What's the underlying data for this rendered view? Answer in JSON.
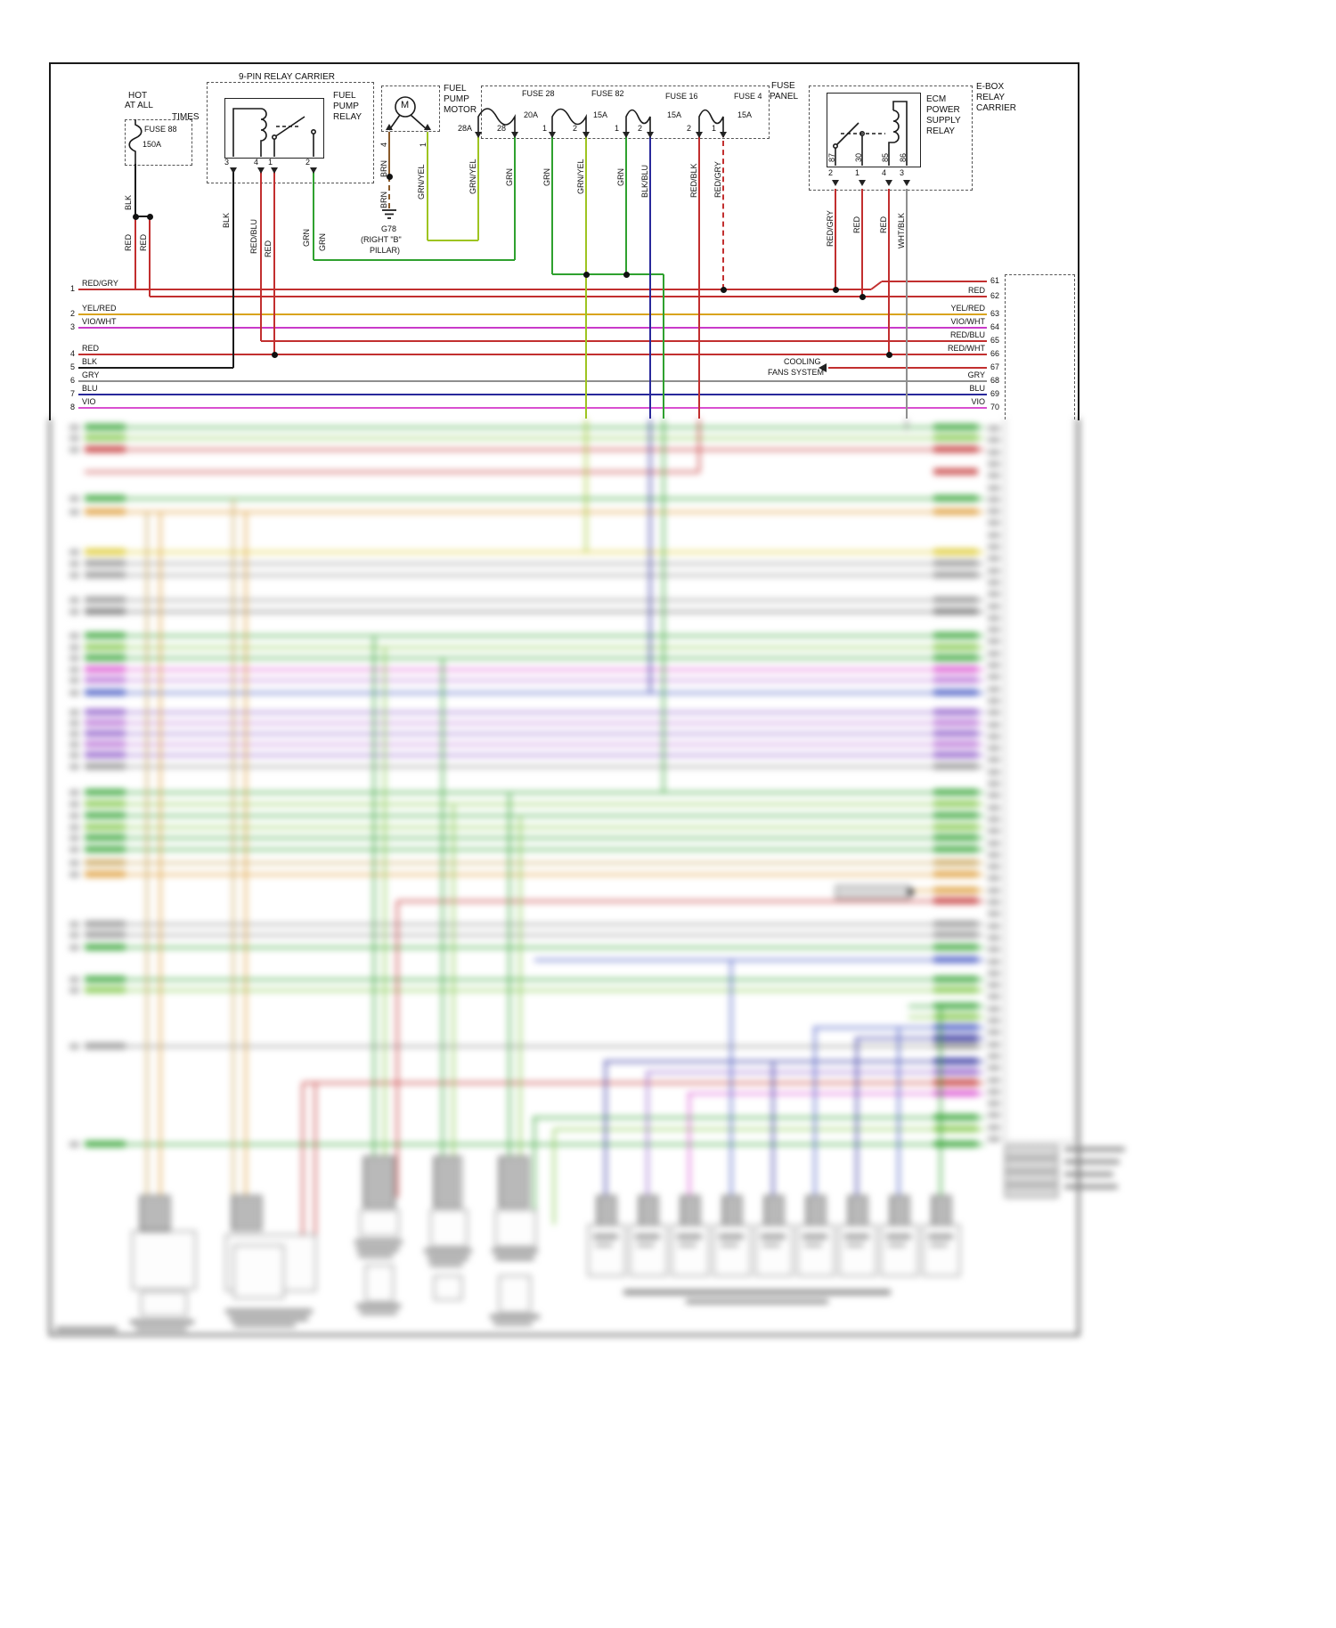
{
  "power_source": {
    "hot_line1": "HOT",
    "hot_line2": "AT ALL",
    "hot_line3": "TIMES",
    "fuse_name": "FUSE 88",
    "fuse_rating": "150A",
    "wire_blk": "BLK",
    "wire_red_left": "RED",
    "wire_red_right": "RED"
  },
  "relay_carrier": {
    "title": "9-PIN RELAY CARRIER",
    "relay_line1": "FUEL",
    "relay_line2": "PUMP",
    "relay_line3": "RELAY",
    "pins": [
      "3",
      "4",
      "1",
      "2"
    ],
    "wire_labels": [
      "BLK",
      "RED/BLU",
      "RED",
      "GRN",
      "GRN"
    ]
  },
  "fuel_pump_motor": {
    "label_line1": "FUEL",
    "label_line2": "PUMP",
    "label_line3": "MOTOR",
    "motor_symbol": "M",
    "pin4": "4",
    "pin4_wire": "BRN",
    "pin1": "1",
    "pin1_wire": "GRN/YEL",
    "ground_wire": "BRN",
    "ground_id": "G78",
    "ground_loc_line1": "(RIGHT \"B\"",
    "ground_loc_line2": "PILLAR)"
  },
  "fuse_panel": {
    "title_line1": "FUSE",
    "title_line2": "PANEL",
    "fuses": [
      {
        "name": "FUSE 28",
        "rating": "20A",
        "pin_left": "28A",
        "pin_right": "28",
        "wire_left": "GRN/YEL",
        "wire_right": "GRN"
      },
      {
        "name": "FUSE 82",
        "rating": "15A",
        "pin_left": "1",
        "pin_right": "2",
        "wire_left": "GRN",
        "wire_right": "GRN/YEL"
      },
      {
        "name": "FUSE 16",
        "rating": "15A",
        "pin_left": "1",
        "pin_right": "2",
        "wire_left": "GRN",
        "wire_right": "BLK/BLU"
      },
      {
        "name": "FUSE 4",
        "rating": "15A",
        "pin_left": "2",
        "pin_right": "1",
        "wire_left": "RED/BLK",
        "wire_right": "RED/GRY"
      }
    ]
  },
  "ebox": {
    "carrier_line1": "E-BOX",
    "carrier_line2": "RELAY",
    "carrier_line3": "CARRIER",
    "relay_line1": "ECM",
    "relay_line2": "POWER",
    "relay_line3": "SUPPLY",
    "relay_line4": "RELAY",
    "pins_top": [
      "87",
      "30",
      "85",
      "86"
    ],
    "pins_bottom": [
      "2",
      "1",
      "4",
      "3"
    ],
    "wire_labels": [
      "RED/GRY",
      "RED",
      "RED",
      "WHT/BLK"
    ]
  },
  "left_bus": [
    {
      "num": "1",
      "label": "RED/GRY"
    },
    {
      "num": "2",
      "label": "YEL/RED"
    },
    {
      "num": "3",
      "label": "VIO/WHT"
    },
    {
      "num": "4",
      "label": "RED"
    },
    {
      "num": "5",
      "label": "BLK"
    },
    {
      "num": "6",
      "label": "GRY"
    },
    {
      "num": "7",
      "label": "BLU"
    },
    {
      "num": "8",
      "label": "VIO"
    }
  ],
  "right_bus": [
    {
      "num": "61",
      "label": ""
    },
    {
      "num": "62",
      "label": "RED"
    },
    {
      "num": "63",
      "label": "YEL/RED"
    },
    {
      "num": "64",
      "label": "VIO/WHT"
    },
    {
      "num": "65",
      "label": "RED/BLU"
    },
    {
      "num": "66",
      "label": "RED/WHT"
    },
    {
      "num": "67",
      "label": ""
    },
    {
      "num": "68",
      "label": "GRY"
    },
    {
      "num": "69",
      "label": "BLU"
    },
    {
      "num": "70",
      "label": "VIO"
    }
  ],
  "annotations": {
    "cooling_line1": "COOLING",
    "cooling_line2": "FANS SYSTEM"
  },
  "colors": {
    "red": "#c22f2f",
    "green": "#2fa12f",
    "green_light": "#7cc544",
    "green_yellow": "#9ec421",
    "yellow": "#ddc92a",
    "yellow_red": "#d9a41e",
    "orange": "#dd9a33",
    "tan": "#c9a55a",
    "violet": "#c93ac9",
    "magenta": "#d94fd0",
    "purple": "#8e5bc9",
    "lavender": "#b66fd6",
    "blue": "#4053c2",
    "navy": "#28289b",
    "gray": "#8f8f8f",
    "gray_dark": "#707070",
    "black": "#1a1a1a",
    "brown": "#8a5a2a"
  }
}
